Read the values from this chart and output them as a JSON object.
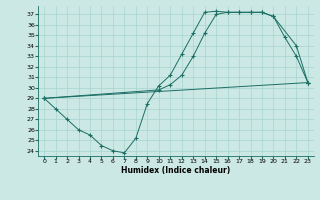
{
  "xlabel": "Humidex (Indice chaleur)",
  "bg_color": "#cce8e4",
  "line_color": "#1a6e64",
  "grid_color": "#a8d4cf",
  "xlim": [
    -0.5,
    23.5
  ],
  "ylim": [
    23.5,
    37.8
  ],
  "xticks": [
    0,
    1,
    2,
    3,
    4,
    5,
    6,
    7,
    8,
    9,
    10,
    11,
    12,
    13,
    14,
    15,
    16,
    17,
    18,
    19,
    20,
    21,
    22,
    23
  ],
  "yticks": [
    24,
    25,
    26,
    27,
    28,
    29,
    30,
    31,
    32,
    33,
    34,
    35,
    36,
    37
  ],
  "line1_x": [
    0,
    1,
    2,
    3,
    4,
    5,
    6,
    7,
    8,
    9,
    10,
    11,
    12,
    13,
    14,
    15,
    16,
    17,
    18,
    19,
    20,
    21,
    22,
    23
  ],
  "line1_y": [
    29,
    28,
    27,
    26,
    25.5,
    24.5,
    24,
    23.8,
    25.2,
    28.5,
    30.2,
    31.2,
    33.2,
    35.2,
    37.2,
    37.3,
    37.2,
    37.2,
    37.2,
    37.2,
    36.8,
    34.8,
    33.0,
    30.5
  ],
  "line2_x": [
    0,
    10,
    11,
    12,
    13,
    14,
    15,
    16,
    17,
    18,
    19,
    20,
    22,
    23
  ],
  "line2_y": [
    29,
    29.8,
    30.3,
    31.2,
    33.0,
    35.2,
    37.0,
    37.2,
    37.2,
    37.2,
    37.2,
    36.8,
    34.0,
    30.5
  ],
  "line3_x": [
    0,
    23
  ],
  "line3_y": [
    29,
    30.5
  ],
  "xlabel_fontsize": 5.5,
  "tick_fontsize": 4.5
}
